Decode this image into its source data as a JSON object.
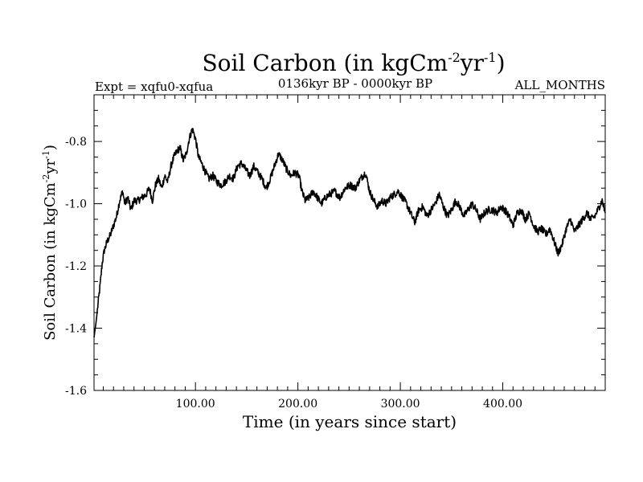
{
  "chart_data": {
    "type": "line",
    "title_main": "Soil Carbon (in kgCm",
    "title_sup1": "-2",
    "title_mid": "yr",
    "title_sup2": "-1",
    "title_end": ")",
    "subtitle_left": "Expt = xqfu0-xqfua",
    "subtitle_center": "0136kyr BP - 0000kyr BP",
    "subtitle_right": "ALL_MONTHS",
    "xlabel": "Time (in years since start)",
    "ylabel_main": "Soil Carbon (in kgCm",
    "ylabel_sup1": "-2",
    "ylabel_mid": "yr",
    "ylabel_sup2": "-1",
    "ylabel_end": ")",
    "xlim": [
      1,
      500
    ],
    "ylim": [
      -1.6,
      -0.65
    ],
    "x_ticks": [
      {
        "value": 100,
        "label": "100.00"
      },
      {
        "value": 200,
        "label": "200.00"
      },
      {
        "value": 300,
        "label": "300.00"
      },
      {
        "value": 400,
        "label": "400.00"
      }
    ],
    "y_ticks": [
      {
        "value": -1.6,
        "label": "-1.6"
      },
      {
        "value": -1.4,
        "label": "-1.4"
      },
      {
        "value": -1.2,
        "label": "-1.2"
      },
      {
        "value": -1.0,
        "label": "-1.0"
      },
      {
        "value": -0.8,
        "label": "-0.8"
      }
    ],
    "series": [
      {
        "name": "Soil Carbon",
        "color": "#000000",
        "anchors": [
          [
            1,
            -1.43
          ],
          [
            3,
            -1.38
          ],
          [
            5,
            -1.32
          ],
          [
            7,
            -1.26
          ],
          [
            9,
            -1.19
          ],
          [
            11,
            -1.15
          ],
          [
            14,
            -1.12
          ],
          [
            17,
            -1.1
          ],
          [
            20,
            -1.07
          ],
          [
            23,
            -1.04
          ],
          [
            26,
            -0.99
          ],
          [
            29,
            -0.96
          ],
          [
            31,
            -1.0
          ],
          [
            34,
            -0.98
          ],
          [
            37,
            -1.02
          ],
          [
            40,
            -0.99
          ],
          [
            44,
            -0.99
          ],
          [
            48,
            -0.98
          ],
          [
            52,
            -0.97
          ],
          [
            55,
            -0.95
          ],
          [
            58,
            -0.99
          ],
          [
            61,
            -0.94
          ],
          [
            64,
            -0.92
          ],
          [
            67,
            -0.95
          ],
          [
            70,
            -0.91
          ],
          [
            73,
            -0.93
          ],
          [
            76,
            -0.88
          ],
          [
            79,
            -0.85
          ],
          [
            82,
            -0.83
          ],
          [
            85,
            -0.82
          ],
          [
            88,
            -0.86
          ],
          [
            91,
            -0.84
          ],
          [
            94,
            -0.79
          ],
          [
            97,
            -0.76
          ],
          [
            100,
            -0.79
          ],
          [
            103,
            -0.85
          ],
          [
            106,
            -0.87
          ],
          [
            110,
            -0.9
          ],
          [
            113,
            -0.92
          ],
          [
            117,
            -0.91
          ],
          [
            121,
            -0.93
          ],
          [
            125,
            -0.94
          ],
          [
            129,
            -0.93
          ],
          [
            133,
            -0.91
          ],
          [
            137,
            -0.92
          ],
          [
            141,
            -0.88
          ],
          [
            145,
            -0.87
          ],
          [
            149,
            -0.89
          ],
          [
            153,
            -0.91
          ],
          [
            157,
            -0.88
          ],
          [
            161,
            -0.9
          ],
          [
            165,
            -0.92
          ],
          [
            169,
            -0.95
          ],
          [
            173,
            -0.92
          ],
          [
            177,
            -0.88
          ],
          [
            181,
            -0.84
          ],
          [
            185,
            -0.86
          ],
          [
            189,
            -0.89
          ],
          [
            193,
            -0.91
          ],
          [
            197,
            -0.9
          ],
          [
            201,
            -0.91
          ],
          [
            204,
            -0.96
          ],
          [
            207,
            -0.99
          ],
          [
            211,
            -0.98
          ],
          [
            215,
            -0.96
          ],
          [
            219,
            -0.98
          ],
          [
            223,
            -1.0
          ],
          [
            227,
            -0.98
          ],
          [
            231,
            -0.97
          ],
          [
            236,
            -0.96
          ],
          [
            241,
            -0.98
          ],
          [
            246,
            -0.95
          ],
          [
            251,
            -0.94
          ],
          [
            256,
            -0.95
          ],
          [
            261,
            -0.92
          ],
          [
            266,
            -0.9
          ],
          [
            270,
            -0.96
          ],
          [
            274,
            -0.99
          ],
          [
            278,
            -1.01
          ],
          [
            282,
            -0.99
          ],
          [
            286,
            -1.0
          ],
          [
            290,
            -0.98
          ],
          [
            294,
            -0.97
          ],
          [
            298,
            -0.96
          ],
          [
            302,
            -0.98
          ],
          [
            306,
            -1.0
          ],
          [
            310,
            -1.03
          ],
          [
            314,
            -1.06
          ],
          [
            318,
            -1.02
          ],
          [
            322,
            -1.01
          ],
          [
            326,
            -1.04
          ],
          [
            330,
            -1.02
          ],
          [
            334,
            -1.0
          ],
          [
            338,
            -0.97
          ],
          [
            342,
            -1.01
          ],
          [
            346,
            -1.04
          ],
          [
            350,
            -1.02
          ],
          [
            354,
            -0.99
          ],
          [
            358,
            -1.01
          ],
          [
            362,
            -1.04
          ],
          [
            366,
            -1.02
          ],
          [
            370,
            -1.0
          ],
          [
            374,
            -1.02
          ],
          [
            378,
            -1.05
          ],
          [
            382,
            -1.03
          ],
          [
            386,
            -1.02
          ],
          [
            390,
            -1.02
          ],
          [
            394,
            -1.03
          ],
          [
            398,
            -1.01
          ],
          [
            402,
            -1.02
          ],
          [
            406,
            -1.04
          ],
          [
            410,
            -1.07
          ],
          [
            414,
            -1.03
          ],
          [
            418,
            -1.02
          ],
          [
            422,
            -1.05
          ],
          [
            426,
            -1.03
          ],
          [
            430,
            -1.07
          ],
          [
            434,
            -1.09
          ],
          [
            438,
            -1.08
          ],
          [
            442,
            -1.1
          ],
          [
            446,
            -1.08
          ],
          [
            450,
            -1.12
          ],
          [
            454,
            -1.16
          ],
          [
            458,
            -1.13
          ],
          [
            462,
            -1.08
          ],
          [
            466,
            -1.05
          ],
          [
            470,
            -1.09
          ],
          [
            474,
            -1.07
          ],
          [
            478,
            -1.05
          ],
          [
            482,
            -1.03
          ],
          [
            486,
            -1.05
          ],
          [
            490,
            -1.04
          ],
          [
            494,
            -1.01
          ],
          [
            497,
            -0.99
          ],
          [
            500,
            -1.03
          ]
        ],
        "noise_amplitude": 0.012
      }
    ]
  }
}
